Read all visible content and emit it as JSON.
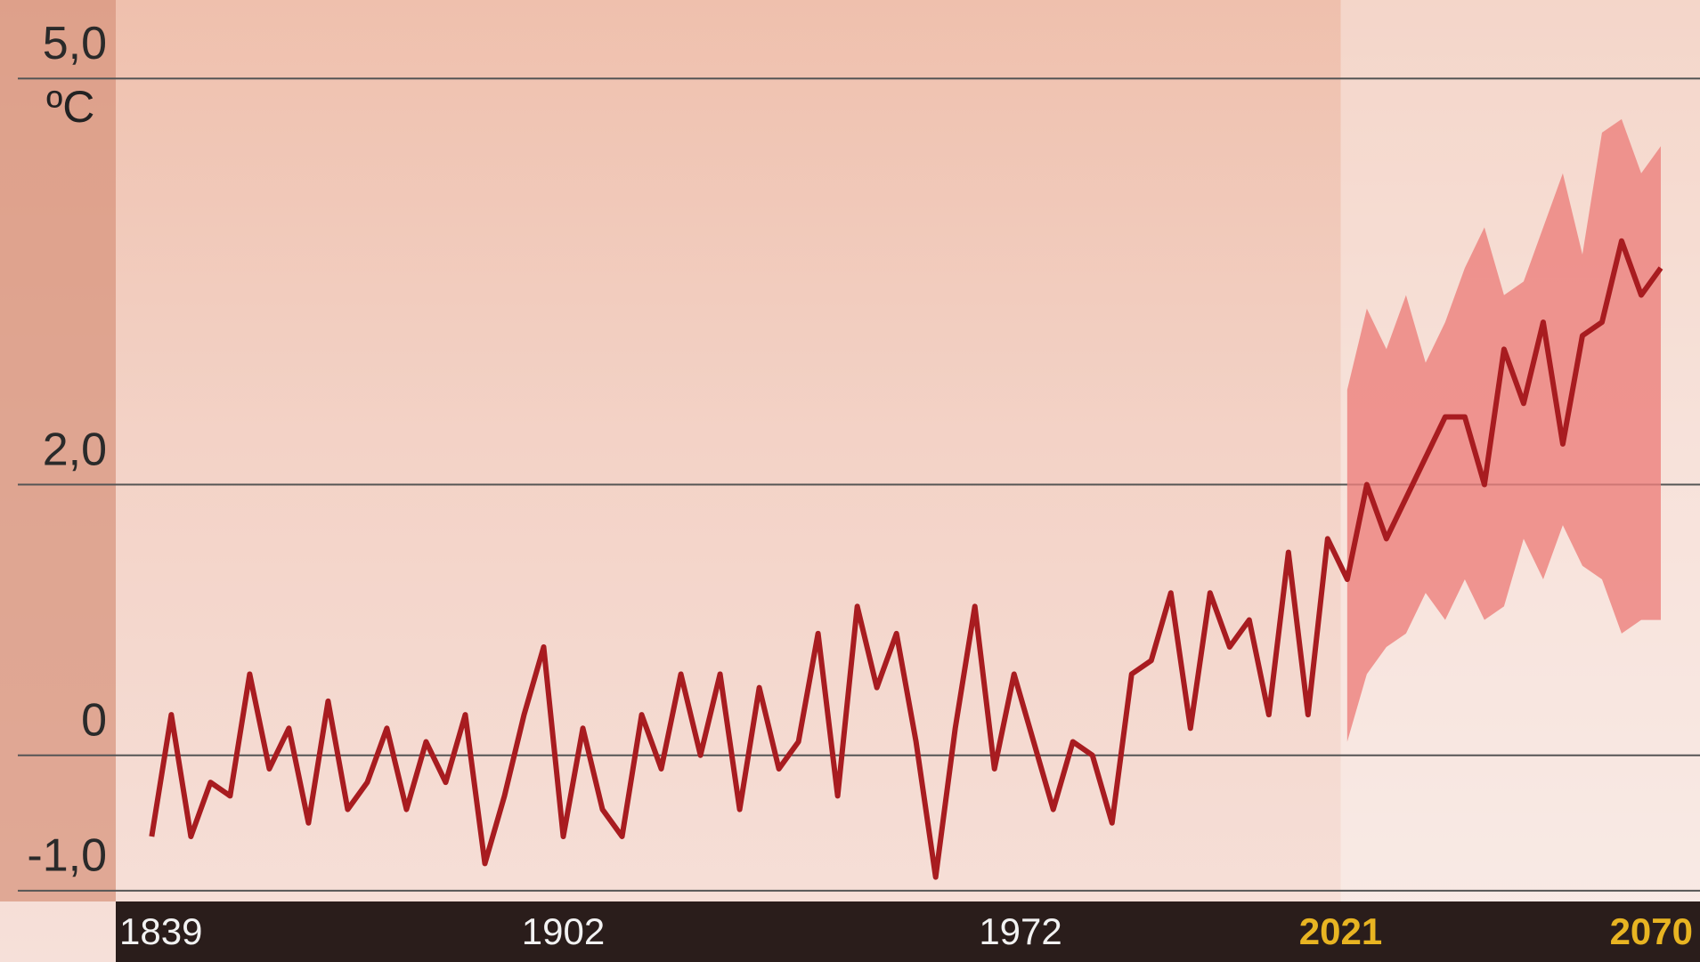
{
  "chart_data": {
    "type": "line",
    "y_unit": "ºC",
    "x": [
      1839,
      1842,
      1845,
      1848,
      1851,
      1854,
      1857,
      1860,
      1863,
      1866,
      1869,
      1872,
      1875,
      1878,
      1881,
      1884,
      1887,
      1890,
      1893,
      1896,
      1899,
      1902,
      1905,
      1908,
      1911,
      1914,
      1917,
      1920,
      1923,
      1926,
      1929,
      1932,
      1935,
      1938,
      1941,
      1944,
      1947,
      1950,
      1953,
      1956,
      1959,
      1962,
      1965,
      1968,
      1971,
      1974,
      1977,
      1980,
      1983,
      1986,
      1989,
      1992,
      1995,
      1998,
      2001,
      2004,
      2007,
      2010,
      2013,
      2016,
      2019,
      2022,
      2025,
      2028,
      2031,
      2034,
      2037,
      2040,
      2043,
      2046,
      2049,
      2052,
      2055,
      2058,
      2061,
      2064,
      2067,
      2070
    ],
    "series": [
      {
        "color": "#a81c20",
        "values": [
          -0.6,
          0.3,
          -0.6,
          -0.2,
          -0.3,
          0.6,
          -0.1,
          0.2,
          -0.5,
          0.4,
          -0.4,
          -0.2,
          0.2,
          -0.4,
          0.1,
          -0.2,
          0.3,
          -0.8,
          -0.3,
          0.3,
          0.8,
          -0.6,
          0.2,
          -0.4,
          -0.6,
          0.3,
          -0.1,
          0.6,
          0.0,
          0.6,
          -0.4,
          0.5,
          -0.1,
          0.1,
          0.9,
          -0.3,
          1.1,
          0.5,
          0.9,
          0.1,
          -0.9,
          0.2,
          1.1,
          -0.1,
          0.6,
          0.1,
          -0.4,
          0.1,
          0.0,
          -0.5,
          0.6,
          0.7,
          1.2,
          0.2,
          1.2,
          0.8,
          1.0,
          0.3,
          1.5,
          0.3,
          1.6,
          1.3,
          2.0,
          1.6,
          1.9,
          2.2,
          2.5,
          2.5,
          2.0,
          3.0,
          2.6,
          3.2,
          2.3,
          3.1,
          3.2,
          3.8,
          3.4,
          3.6
        ]
      }
    ],
    "band": {
      "color": "#ec7f7c",
      "lower": [
        null,
        null,
        null,
        null,
        null,
        null,
        null,
        null,
        null,
        null,
        null,
        null,
        null,
        null,
        null,
        null,
        null,
        null,
        null,
        null,
        null,
        null,
        null,
        null,
        null,
        null,
        null,
        null,
        null,
        null,
        null,
        null,
        null,
        null,
        null,
        null,
        null,
        null,
        null,
        null,
        null,
        null,
        null,
        null,
        null,
        null,
        null,
        null,
        null,
        null,
        null,
        null,
        null,
        null,
        null,
        null,
        null,
        null,
        null,
        null,
        null,
        0.1,
        0.6,
        0.8,
        0.9,
        1.2,
        1.0,
        1.3,
        1.0,
        1.1,
        1.6,
        1.3,
        1.7,
        1.4,
        1.3,
        0.9,
        1.0,
        1.0
      ],
      "upper": [
        null,
        null,
        null,
        null,
        null,
        null,
        null,
        null,
        null,
        null,
        null,
        null,
        null,
        null,
        null,
        null,
        null,
        null,
        null,
        null,
        null,
        null,
        null,
        null,
        null,
        null,
        null,
        null,
        null,
        null,
        null,
        null,
        null,
        null,
        null,
        null,
        null,
        null,
        null,
        null,
        null,
        null,
        null,
        null,
        null,
        null,
        null,
        null,
        null,
        null,
        null,
        null,
        null,
        null,
        null,
        null,
        null,
        null,
        null,
        null,
        null,
        2.7,
        3.3,
        3.0,
        3.4,
        2.9,
        3.2,
        3.6,
        3.9,
        3.4,
        3.5,
        3.9,
        4.3,
        3.7,
        4.6,
        4.7,
        4.3,
        4.5
      ]
    },
    "projection_start": 2021,
    "projection_tick_color": "#e8b422",
    "xlim": [
      1833.5,
      2076
    ],
    "xticks": [
      1839,
      1902,
      1972,
      2021,
      2070
    ],
    "ylim": [
      -1.08,
      5.58
    ],
    "yticks": [
      {
        "value": -1,
        "label": "-1,0"
      },
      0,
      {
        "value": 2,
        "label": "2,0"
      },
      {
        "value": 5,
        "label": "5,0"
      }
    ],
    "grid": true
  }
}
